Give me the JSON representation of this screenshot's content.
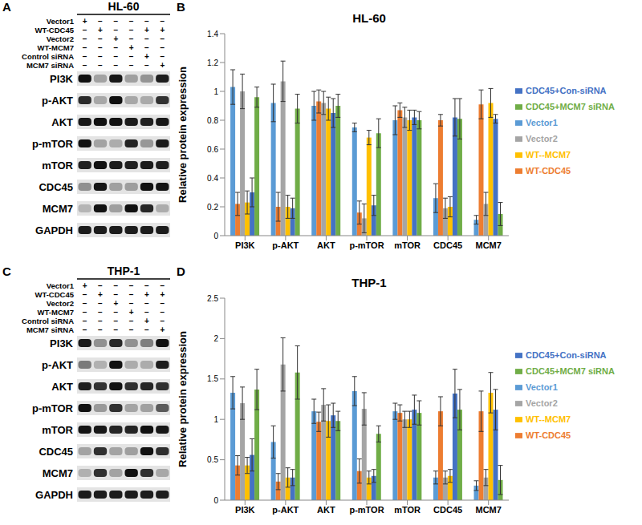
{
  "panel_labels": [
    "A",
    "B",
    "C",
    "D"
  ],
  "blots": [
    {
      "title": "HL-60",
      "conditions": [
        {
          "label": "Vector1",
          "signs": [
            "+",
            "−",
            "−",
            "−",
            "−",
            "−"
          ]
        },
        {
          "label": "WT-CDC45",
          "signs": [
            "−",
            "+",
            "−",
            "−",
            "+",
            "+"
          ]
        },
        {
          "label": "Vector2",
          "signs": [
            "−",
            "−",
            "+",
            "−",
            "−",
            "−"
          ]
        },
        {
          "label": "WT-MCM7",
          "signs": [
            "−",
            "−",
            "−",
            "+",
            "−",
            "−"
          ]
        },
        {
          "label": "Control siRNA",
          "signs": [
            "−",
            "−",
            "−",
            "−",
            "+",
            "−"
          ]
        },
        {
          "label": "MCM7 siRNA",
          "signs": [
            "−",
            "−",
            "−",
            "−",
            "−",
            "+"
          ]
        }
      ],
      "proteins": [
        "PI3K",
        "p-AKT",
        "AKT",
        "p-mTOR",
        "mTOR",
        "CDC45",
        "MCM7",
        "GAPDH"
      ]
    },
    {
      "title": "THP-1",
      "conditions": [
        {
          "label": "Vector1",
          "signs": [
            "+",
            "−",
            "−",
            "−",
            "−",
            "−"
          ]
        },
        {
          "label": "WT-CDC45",
          "signs": [
            "−",
            "+",
            "−",
            "−",
            "+",
            "+"
          ]
        },
        {
          "label": "Vector2",
          "signs": [
            "−",
            "−",
            "+",
            "−",
            "−",
            "−"
          ]
        },
        {
          "label": "WT-MCM7",
          "signs": [
            "−",
            "−",
            "−",
            "+",
            "−",
            "−"
          ]
        },
        {
          "label": "Control siRNA",
          "signs": [
            "−",
            "−",
            "−",
            "−",
            "+",
            "−"
          ]
        },
        {
          "label": "MCM7 siRNA",
          "signs": [
            "−",
            "−",
            "−",
            "−",
            "−",
            "+"
          ]
        }
      ],
      "proteins": [
        "PI3K",
        "p-AKT",
        "AKT",
        "p-mTOR",
        "mTOR",
        "CDC45",
        "MCM7",
        "GAPDH"
      ]
    }
  ],
  "chart_data": [
    {
      "type": "bar",
      "title": "HL-60",
      "y_label": "Relative protein expression",
      "categories": [
        "PI3K",
        "p-AKT",
        "AKT",
        "p-mTOR",
        "mTOR",
        "CDC45",
        "MCM7"
      ],
      "series": [
        {
          "name": "Vector1",
          "color": "#5b9bd5",
          "values": [
            1.03,
            0.92,
            0.9,
            0.75,
            0.8,
            0.26,
            0.11
          ],
          "errors": [
            0.12,
            0.13,
            0.1,
            0.03,
            0.1,
            0.1,
            0.03
          ]
        },
        {
          "name": "WT-CDC45",
          "color": "#ed7d31",
          "values": [
            0.22,
            0.2,
            0.93,
            0.16,
            0.87,
            0.8,
            0.91
          ],
          "errors": [
            0.08,
            0.1,
            0.08,
            0.08,
            0.05,
            0.04,
            0.1
          ]
        },
        {
          "name": "Vector2",
          "color": "#a5a5a5",
          "values": [
            1.0,
            1.07,
            0.92,
            0.12,
            0.82,
            0.19,
            0.22
          ],
          "errors": [
            0.12,
            0.14,
            0.08,
            0.1,
            0.07,
            0.07,
            0.08
          ]
        },
        {
          "name": "WT--MCM7",
          "color": "#ffc000",
          "values": [
            0.23,
            0.2,
            0.88,
            0.68,
            0.8,
            0.2,
            0.92
          ],
          "errors": [
            0.08,
            0.08,
            0.08,
            0.05,
            0.07,
            0.07,
            0.1
          ]
        },
        {
          "name": "CDC45+Con-siRNA",
          "color": "#4472c4",
          "values": [
            0.3,
            0.19,
            0.85,
            0.21,
            0.82,
            0.82,
            0.81
          ],
          "errors": [
            0.1,
            0.07,
            0.1,
            0.07,
            0.05,
            0.13,
            0.03
          ]
        },
        {
          "name": "CDC45+MCM7 siRNA",
          "color": "#70ad47",
          "values": [
            0.96,
            0.88,
            0.9,
            0.71,
            0.8,
            0.81,
            0.15
          ],
          "errors": [
            0.07,
            0.1,
            0.08,
            0.1,
            0.06,
            0.14,
            0.08
          ]
        }
      ],
      "ylim": [
        0,
        1.4
      ],
      "yticks": [
        0,
        0.2,
        0.4,
        0.6,
        0.8,
        1,
        1.2,
        1.4
      ],
      "grid": false,
      "legend": "right"
    },
    {
      "type": "bar",
      "title": "THP-1",
      "y_label": "Relative protein expression",
      "categories": [
        "PI3K",
        "p-AKT",
        "AKT",
        "p-mTOR",
        "mTOR",
        "CDC45",
        "MCM7"
      ],
      "series": [
        {
          "name": "Vector1",
          "color": "#5b9bd5",
          "values": [
            1.33,
            0.72,
            1.1,
            1.35,
            1.1,
            0.28,
            0.18
          ],
          "errors": [
            0.2,
            0.2,
            0.15,
            0.18,
            0.1,
            0.08,
            0.06
          ]
        },
        {
          "name": "WT-CDC45",
          "color": "#ed7d31",
          "values": [
            0.43,
            0.23,
            0.97,
            0.36,
            1.08,
            1.1,
            1.1
          ],
          "errors": [
            0.12,
            0.1,
            0.12,
            0.15,
            0.1,
            0.18,
            0.25
          ]
        },
        {
          "name": "Vector2",
          "color": "#a5a5a5",
          "values": [
            1.2,
            1.68,
            1.18,
            1.13,
            1.0,
            0.28,
            0.28
          ],
          "errors": [
            0.2,
            0.33,
            0.2,
            0.2,
            0.1,
            0.08,
            0.1
          ]
        },
        {
          "name": "WT--MCM7",
          "color": "#ffc000",
          "values": [
            0.43,
            0.28,
            0.98,
            0.28,
            1.0,
            0.3,
            1.33
          ],
          "errors": [
            0.1,
            0.12,
            0.2,
            0.08,
            0.1,
            0.08,
            0.25
          ]
        },
        {
          "name": "CDC45+Con-siRNA",
          "color": "#4472c4",
          "values": [
            0.56,
            0.28,
            1.05,
            0.3,
            1.12,
            1.32,
            1.12
          ],
          "errors": [
            0.2,
            0.1,
            0.15,
            0.08,
            0.18,
            0.3,
            0.25
          ]
        },
        {
          "name": "CDC45+MCM7 siRNA",
          "color": "#70ad47",
          "values": [
            1.37,
            1.58,
            0.98,
            0.82,
            1.08,
            1.12,
            0.25
          ],
          "errors": [
            0.25,
            0.33,
            0.12,
            0.1,
            0.15,
            0.25,
            0.18
          ]
        }
      ],
      "ylim": [
        0,
        2.5
      ],
      "yticks": [
        0,
        0.5,
        1,
        1.5,
        2,
        2.5
      ],
      "grid": false,
      "legend": "right"
    }
  ]
}
